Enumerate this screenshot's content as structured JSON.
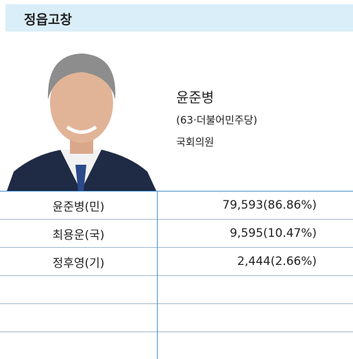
{
  "header": {
    "title": "정읍고창"
  },
  "winner": {
    "name": "윤준병",
    "detail": "(63·더불어민주당)",
    "role": "국회의원"
  },
  "table": {
    "rows": [
      [
        "윤준병(민)",
        "79,593(86.86%)"
      ],
      [
        "최용운(국)",
        "9,595(10.47%)"
      ],
      [
        "정후영(기)",
        "2,444(2.66%)"
      ]
    ]
  }
}
